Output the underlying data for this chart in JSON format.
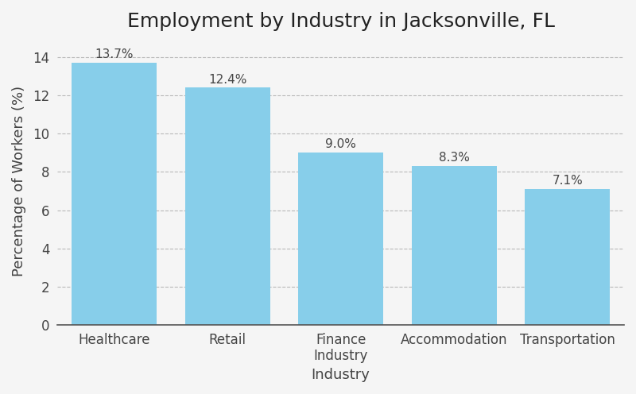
{
  "title": "Employment by Industry in Jacksonville, FL",
  "xlabel": "Industry",
  "ylabel": "Percentage of Workers (%)",
  "categories": [
    "Healthcare",
    "Retail",
    "Finance\nIndustry",
    "Accommodation",
    "Transportation"
  ],
  "values": [
    13.7,
    12.4,
    9.0,
    8.3,
    7.1
  ],
  "labels": [
    "13.7%",
    "12.4%",
    "9.0%",
    "8.3%",
    "7.1%"
  ],
  "bar_color": "#87CEEA",
  "bar_edgecolor": "none",
  "bar_width": 0.75,
  "ylim": [
    0,
    15
  ],
  "yticks": [
    0,
    2,
    4,
    6,
    8,
    10,
    12,
    14
  ],
  "title_fontsize": 18,
  "axis_label_fontsize": 13,
  "tick_fontsize": 12,
  "annotation_fontsize": 11,
  "background_color": "#f5f5f5",
  "grid_color": "#aaaaaa",
  "grid_linestyle": "--",
  "grid_alpha": 0.8
}
